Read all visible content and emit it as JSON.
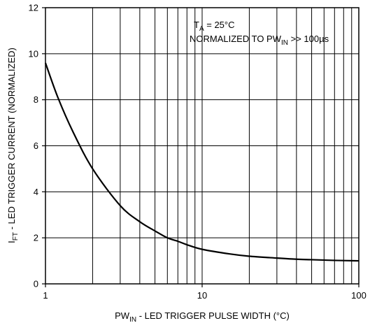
{
  "chart_data": {
    "type": "line",
    "x_scale": "log",
    "xlim": [
      1,
      100
    ],
    "ylim": [
      0,
      12
    ],
    "grid": true,
    "x_tick_labels": [
      "1",
      "10",
      "100"
    ],
    "y_tick_labels": [
      "0",
      "2",
      "4",
      "6",
      "8",
      "10",
      "12"
    ],
    "ylabel": {
      "main": "I",
      "sub": "FT",
      "rest": " - LED TRIGGER CURRENT (NORMALIZED)"
    },
    "xlabel": {
      "main": "PW",
      "sub": "IN",
      "rest": " - LED TRIGGER PULSE WIDTH (°C)"
    },
    "annotations": {
      "line1": {
        "main": "T",
        "sub": "A",
        "rest": " = 25°C"
      },
      "line2": {
        "main": "NORMALIZED TO PW",
        "sub": "IN",
        "rest": " >> 100µs"
      }
    },
    "series": [
      {
        "color": "#000000",
        "x": [
          1,
          1.2,
          1.5,
          2,
          3,
          4,
          5,
          6,
          7,
          8,
          10,
          15,
          20,
          30,
          40,
          50,
          70,
          100
        ],
        "y": [
          9.6,
          8.1,
          6.6,
          5.0,
          3.4,
          2.7,
          2.3,
          2.0,
          1.85,
          1.7,
          1.5,
          1.3,
          1.2,
          1.12,
          1.07,
          1.05,
          1.02,
          1.0
        ]
      }
    ]
  }
}
